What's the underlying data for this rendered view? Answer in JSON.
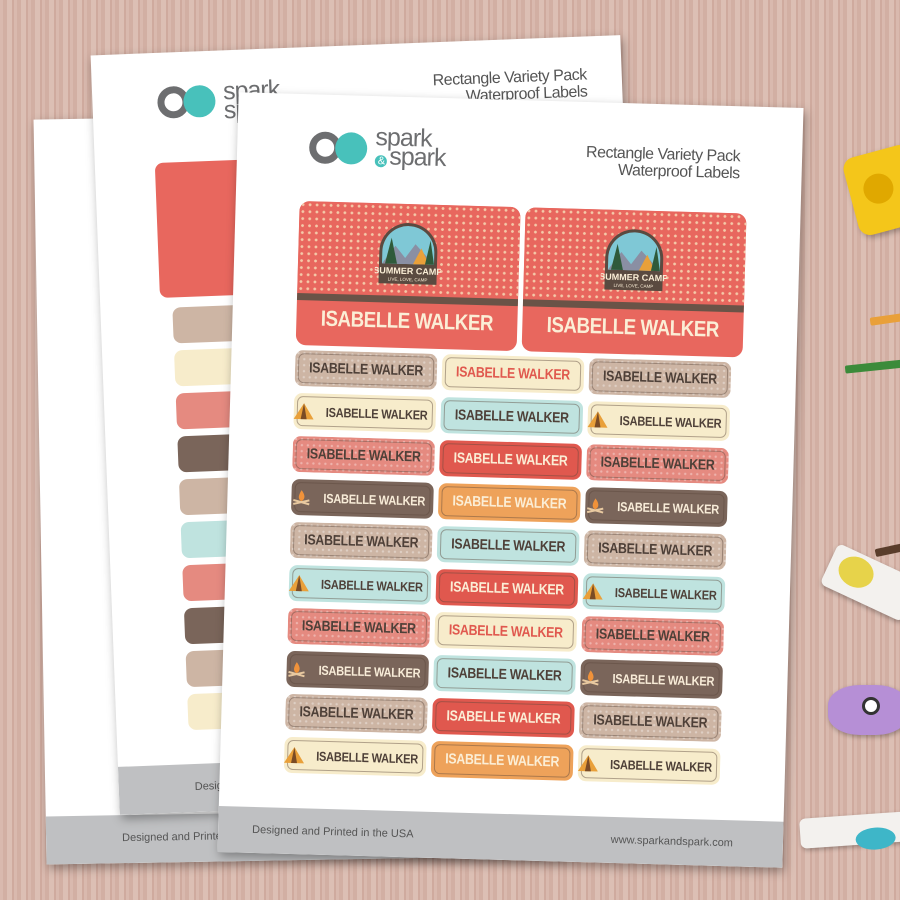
{
  "brand": {
    "logo_word1": "spark",
    "logo_amp": "&",
    "logo_word2": "spark"
  },
  "sheet_title": {
    "line1": "Rectangle Variety Pack",
    "line2": "Waterproof Labels"
  },
  "footer": {
    "left": "Designed and Printed in the USA",
    "right": "www.sparkandspark.com"
  },
  "big_labels": [
    {
      "badge_title": "SUMMER CAMP",
      "badge_sub": "LIVE, LOVE, CAMP",
      "name": "ISABELLE WALKER"
    },
    {
      "badge_title": "SUMMER CAMP",
      "badge_sub": "LIVE, LOVE, CAMP",
      "name": "ISABELLE WALKER"
    }
  ],
  "label_styles": {
    "tan": {
      "bg": "#cdb5a4",
      "fg": "#4e4038",
      "dots": true
    },
    "pink": {
      "bg": "#e58a80",
      "fg": "#4e4038",
      "dots": true
    },
    "brown": {
      "bg": "#7a655a",
      "fg": "#f8ecd8",
      "icon": "campfire-icon"
    },
    "cream_tent": {
      "bg": "#f7eccb",
      "fg": "#4e4038",
      "icon": "tent-icon"
    },
    "mint_tent": {
      "bg": "#bfe3df",
      "fg": "#4e4038",
      "icon": "tent-icon"
    },
    "cream": {
      "bg": "#f7eccb",
      "fg": "#e0584e"
    },
    "mint": {
      "bg": "#bfe3df",
      "fg": "#4e4038"
    },
    "red": {
      "bg": "#e0584e",
      "fg": "#fbeed6"
    },
    "orange": {
      "bg": "#eea25a",
      "fg": "#fbeed6"
    }
  },
  "label_columns": [
    [
      "tan",
      "cream_tent",
      "pink",
      "brown",
      "tan",
      "mint_tent",
      "pink",
      "brown",
      "tan",
      "cream_tent"
    ],
    [
      "cream",
      "mint",
      "red",
      "orange",
      "mint",
      "red",
      "cream",
      "mint",
      "red",
      "orange"
    ],
    [
      "tan",
      "cream_tent",
      "pink",
      "brown",
      "tan",
      "mint_tent",
      "pink",
      "brown",
      "tan",
      "cream_tent"
    ]
  ],
  "label_text": "ISABELLE WALKER"
}
